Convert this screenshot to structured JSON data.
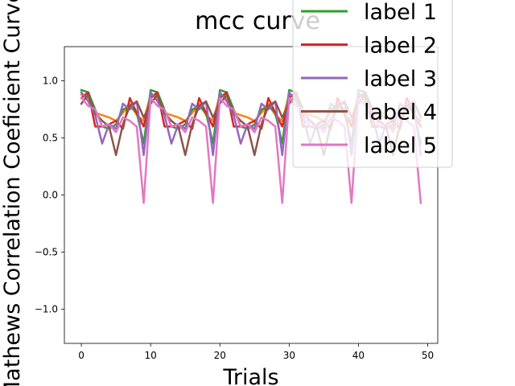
{
  "chart_data": {
    "type": "line",
    "title": "mcc curve",
    "xlabel": "Trials",
    "ylabel": "Mathews Correlation Coeficient Curve",
    "xlim": [
      -2.45,
      51.45
    ],
    "ylim": [
      -1.3,
      1.3
    ],
    "xticks": [
      0,
      10,
      20,
      30,
      40,
      50
    ],
    "yticks": [
      -1.0,
      -0.5,
      0.0,
      0.5,
      1.0
    ],
    "xtick_labels": [
      "0",
      "10",
      "20",
      "30",
      "40",
      "50"
    ],
    "ytick_labels": [
      "−1.0",
      "−0.5",
      "0.0",
      "0.5",
      "1.0"
    ],
    "grid": false,
    "legend": {
      "position": "top-right",
      "entries": [
        "label 1",
        "label 2",
        "label 3",
        "label 4",
        "label 5"
      ]
    },
    "colors": [
      "#ff7f0e",
      "#2ca02c",
      "#d62728",
      "#9467bd",
      "#8c564b",
      "#e377c2"
    ],
    "series": [
      {
        "name": "",
        "color": "#ff7f0e",
        "x": [
          0,
          1,
          2,
          3,
          4,
          5,
          6,
          7,
          8,
          9,
          10,
          11,
          12,
          13,
          14,
          15,
          16,
          17,
          18,
          19,
          20,
          21,
          22,
          23,
          24,
          25,
          26,
          27,
          28,
          29,
          30,
          31,
          32,
          33,
          34,
          35,
          36,
          37,
          38,
          39,
          40,
          41,
          42,
          43,
          44,
          45,
          46,
          47,
          48,
          49
        ],
        "values": [
          0.88,
          0.85,
          0.72,
          0.7,
          0.68,
          0.65,
          0.72,
          0.8,
          0.7,
          0.65,
          0.88,
          0.85,
          0.72,
          0.7,
          0.68,
          0.65,
          0.72,
          0.8,
          0.7,
          0.65,
          0.88,
          0.85,
          0.72,
          0.7,
          0.68,
          0.65,
          0.72,
          0.8,
          0.7,
          0.65,
          0.88,
          0.85,
          0.72,
          0.7,
          0.68,
          0.65,
          0.72,
          0.8,
          0.7,
          0.65,
          0.88,
          0.85,
          0.72,
          0.7,
          0.68,
          0.65,
          0.72,
          0.8,
          0.7,
          0.65
        ]
      },
      {
        "name": "label 1",
        "color": "#2ca02c",
        "x": [
          0,
          1,
          2,
          3,
          4,
          5,
          6,
          7,
          8,
          9,
          10,
          11,
          12,
          13,
          14,
          15,
          16,
          17,
          18,
          19,
          20,
          21,
          22,
          23,
          24,
          25,
          26,
          27,
          28,
          29,
          30,
          31,
          32,
          33,
          34,
          35,
          36,
          37,
          38,
          39,
          40,
          41,
          42,
          43,
          44,
          45,
          46,
          47,
          48,
          49
        ],
        "values": [
          0.92,
          0.9,
          0.75,
          0.6,
          0.58,
          0.62,
          0.75,
          0.78,
          0.72,
          0.45,
          0.92,
          0.9,
          0.75,
          0.6,
          0.58,
          0.62,
          0.75,
          0.78,
          0.72,
          0.45,
          0.92,
          0.9,
          0.75,
          0.6,
          0.58,
          0.62,
          0.75,
          0.78,
          0.72,
          0.45,
          0.92,
          0.9,
          0.75,
          0.6,
          0.58,
          0.62,
          0.75,
          0.78,
          0.72,
          0.45,
          0.92,
          0.9,
          0.75,
          0.6,
          0.58,
          0.62,
          0.75,
          0.78,
          0.72,
          0.45
        ]
      },
      {
        "name": "label 2",
        "color": "#d62728",
        "x": [
          0,
          1,
          2,
          3,
          4,
          5,
          6,
          7,
          8,
          9,
          10,
          11,
          12,
          13,
          14,
          15,
          16,
          17,
          18,
          19,
          20,
          21,
          22,
          23,
          24,
          25,
          26,
          27,
          28,
          29,
          30,
          31,
          32,
          33,
          34,
          35,
          36,
          37,
          38,
          39,
          40,
          41,
          42,
          43,
          44,
          45,
          46,
          47,
          48,
          49
        ],
        "values": [
          0.85,
          0.9,
          0.6,
          0.6,
          0.62,
          0.65,
          0.58,
          0.85,
          0.72,
          0.6,
          0.85,
          0.9,
          0.6,
          0.6,
          0.62,
          0.65,
          0.58,
          0.85,
          0.72,
          0.6,
          0.85,
          0.9,
          0.6,
          0.6,
          0.62,
          0.65,
          0.58,
          0.85,
          0.72,
          0.6,
          0.85,
          0.9,
          0.6,
          0.6,
          0.62,
          0.65,
          0.58,
          0.85,
          0.72,
          0.6,
          0.85,
          0.9,
          0.6,
          0.6,
          0.62,
          0.65,
          0.58,
          0.85,
          0.72,
          0.6
        ]
      },
      {
        "name": "label 3",
        "color": "#9467bd",
        "x": [
          0,
          1,
          2,
          3,
          4,
          5,
          6,
          7,
          8,
          9,
          10,
          11,
          12,
          13,
          14,
          15,
          16,
          17,
          18,
          19,
          20,
          21,
          22,
          23,
          24,
          25,
          26,
          27,
          28,
          29,
          30,
          31,
          32,
          33,
          34,
          35,
          36,
          37,
          38,
          39,
          40,
          41,
          42,
          43,
          44,
          45,
          46,
          47,
          48,
          49
        ],
        "values": [
          0.9,
          0.82,
          0.7,
          0.45,
          0.62,
          0.58,
          0.8,
          0.75,
          0.82,
          0.35,
          0.9,
          0.82,
          0.7,
          0.45,
          0.62,
          0.58,
          0.8,
          0.75,
          0.82,
          0.35,
          0.9,
          0.82,
          0.7,
          0.45,
          0.62,
          0.58,
          0.8,
          0.75,
          0.82,
          0.35,
          0.9,
          0.82,
          0.7,
          0.45,
          0.62,
          0.58,
          0.8,
          0.75,
          0.82,
          0.35,
          0.9,
          0.82,
          0.7,
          0.45,
          0.62,
          0.58,
          0.8,
          0.75,
          0.82,
          0.35
        ]
      },
      {
        "name": "label 4",
        "color": "#8c564b",
        "x": [
          0,
          1,
          2,
          3,
          4,
          5,
          6,
          7,
          8,
          9,
          10,
          11,
          12,
          13,
          14,
          15,
          16,
          17,
          18,
          19,
          20,
          21,
          22,
          23,
          24,
          25,
          26,
          27,
          28,
          29,
          30,
          31,
          32,
          33,
          34,
          35,
          36,
          37,
          38,
          39,
          40,
          41,
          42,
          43,
          44,
          45,
          46,
          47,
          48,
          49
        ],
        "values": [
          0.8,
          0.88,
          0.72,
          0.65,
          0.6,
          0.35,
          0.62,
          0.78,
          0.82,
          0.68,
          0.8,
          0.88,
          0.72,
          0.65,
          0.6,
          0.35,
          0.62,
          0.78,
          0.82,
          0.68,
          0.8,
          0.88,
          0.72,
          0.65,
          0.6,
          0.35,
          0.62,
          0.78,
          0.82,
          0.68,
          0.8,
          0.88,
          0.72,
          0.65,
          0.6,
          0.35,
          0.62,
          0.78,
          0.82,
          0.68,
          0.8,
          0.88,
          0.72,
          0.65,
          0.6,
          0.35,
          0.62,
          0.78,
          0.82,
          0.68
        ]
      },
      {
        "name": "label 5",
        "color": "#e377c2",
        "x": [
          0,
          1,
          2,
          3,
          4,
          5,
          6,
          7,
          8,
          9,
          10,
          11,
          12,
          13,
          14,
          15,
          16,
          17,
          18,
          19,
          20,
          21,
          22,
          23,
          24,
          25,
          26,
          27,
          28,
          29,
          30,
          31,
          32,
          33,
          34,
          35,
          36,
          37,
          38,
          39,
          40,
          41,
          42,
          43,
          44,
          45,
          46,
          47,
          48,
          49
        ],
        "values": [
          0.85,
          0.78,
          0.75,
          0.6,
          0.62,
          0.55,
          0.68,
          0.65,
          0.6,
          -0.07,
          0.85,
          0.78,
          0.75,
          0.6,
          0.62,
          0.55,
          0.68,
          0.65,
          0.6,
          -0.07,
          0.85,
          0.78,
          0.75,
          0.6,
          0.62,
          0.55,
          0.68,
          0.65,
          0.6,
          -0.07,
          0.85,
          0.78,
          0.75,
          0.6,
          0.62,
          0.55,
          0.68,
          0.65,
          0.6,
          -0.07,
          0.85,
          0.78,
          0.75,
          0.6,
          0.62,
          0.55,
          0.68,
          0.65,
          0.6,
          -0.07
        ]
      }
    ]
  }
}
